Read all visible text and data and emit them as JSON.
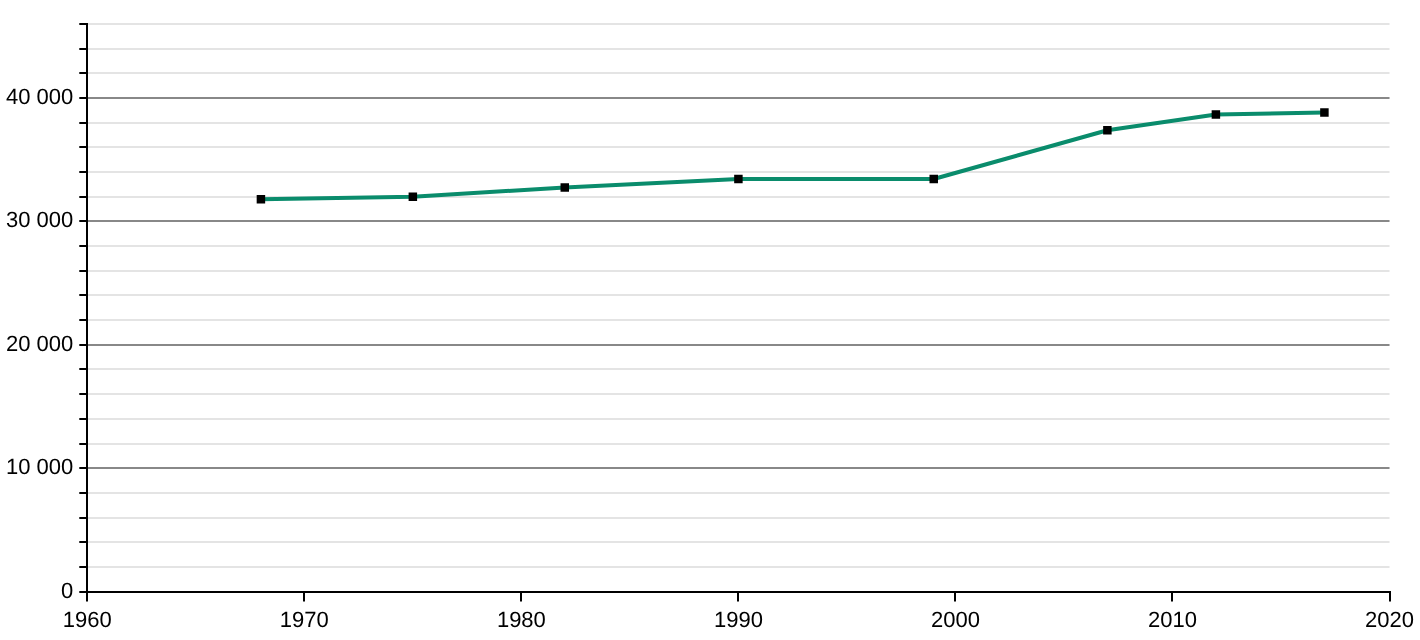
{
  "chart_data": {
    "type": "line",
    "x": [
      1968,
      1975,
      1982,
      1990,
      1999,
      2007,
      2012,
      2017
    ],
    "series": [
      {
        "color": "#0a8c6c",
        "values": [
          31790,
          32000,
          32750,
          33440,
          33440,
          37390,
          38670,
          38830
        ]
      }
    ],
    "xlim": [
      1960,
      2020
    ],
    "xticks": [
      1960,
      1970,
      1980,
      1990,
      2000,
      2010,
      2020
    ],
    "ylim": [
      0,
      46000
    ],
    "yticks": [
      {
        "value": 0,
        "label": "0"
      },
      {
        "value": 2000,
        "label": null
      },
      {
        "value": 4000,
        "label": null
      },
      {
        "value": 6000,
        "label": null
      },
      {
        "value": 8000,
        "label": null
      },
      {
        "value": 10000,
        "label": "10 000"
      },
      {
        "value": 12000,
        "label": null
      },
      {
        "value": 14000,
        "label": null
      },
      {
        "value": 16000,
        "label": null
      },
      {
        "value": 18000,
        "label": null
      },
      {
        "value": 20000,
        "label": "20 000"
      },
      {
        "value": 22000,
        "label": null
      },
      {
        "value": 24000,
        "label": null
      },
      {
        "value": 26000,
        "label": null
      },
      {
        "value": 28000,
        "label": null
      },
      {
        "value": 30000,
        "label": "30 000"
      },
      {
        "value": 32000,
        "label": null
      },
      {
        "value": 34000,
        "label": null
      },
      {
        "value": 36000,
        "label": null
      },
      {
        "value": 38000,
        "label": null
      },
      {
        "value": 40000,
        "label": "40 000"
      },
      {
        "value": 42000,
        "label": null
      },
      {
        "value": 44000,
        "label": null
      },
      {
        "value": 46000,
        "label": null
      }
    ],
    "grid": "y",
    "marker": "square",
    "legend": false
  }
}
